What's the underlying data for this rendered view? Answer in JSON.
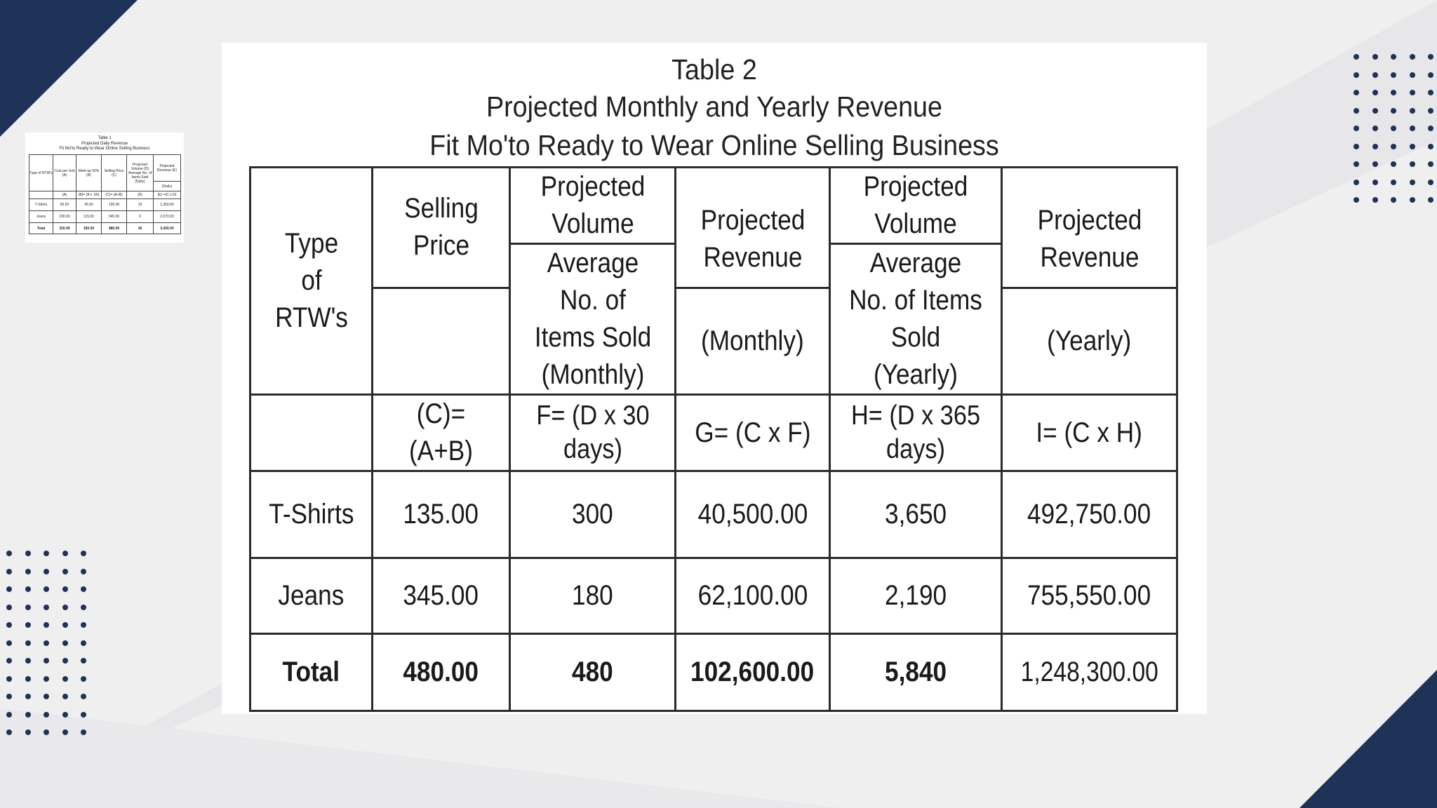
{
  "colors": {
    "background": "#efeff0",
    "navy_accent": "#1f3257",
    "card": "#ffffff",
    "table_border": "#2b2b2b"
  },
  "main_table": {
    "title": "Table 2",
    "subtitle": "Projected Monthly and Yearly Revenue",
    "business": "Fit Mo'to Ready to Wear Online Selling Business",
    "headers": {
      "type": "Type of RTW's",
      "selling_price": "Selling Price",
      "proj_volume_monthly": "Projected Volume",
      "avg_items_monthly": "Average No. of Items Sold (Monthly)",
      "proj_revenue_monthly": "Projected Revenue",
      "monthly": "(Monthly)",
      "proj_volume_yearly": "Projected Volume",
      "avg_items_yearly": "Average No. of Items Sold (Yearly)",
      "proj_revenue_yearly": "Projected Revenue",
      "yearly": "(Yearly)"
    },
    "formulas": {
      "c": "(C)= (A+B)",
      "f": "F= (D x 30 days)",
      "g": "G= (C x F)",
      "h": "H= (D x 365 days)",
      "i": "I= (C x H)"
    },
    "rows": [
      {
        "type": "T-Shirts",
        "price": "135.00",
        "monthly_items": "300",
        "monthly_revenue": "40,500.00",
        "yearly_items": "3,650",
        "yearly_revenue": "492,750.00"
      },
      {
        "type": "Jeans",
        "price": "345.00",
        "monthly_items": "180",
        "monthly_revenue": "62,100.00",
        "yearly_items": "2,190",
        "yearly_revenue": "755,550.00"
      }
    ],
    "total": {
      "type": "Total",
      "price": "480.00",
      "monthly_items": "480",
      "monthly_revenue": "102,600.00",
      "yearly_items": "5,840",
      "yearly_revenue": "1,248,300.00"
    }
  },
  "thumbnail_table": {
    "title": "Table 1",
    "subtitle": "Projected Daily Revenue",
    "business": "Fit Mo'to Ready to Wear Online Selling Business",
    "headers": {
      "type": "Type of RTW's",
      "cost": "Cost per Unit (A)",
      "markup": "Mark-up 50% (B)",
      "price": "Selling Price (C)",
      "volume": "Projected Volume (D) Average No. of Items Sold (Daily)",
      "revenue": "Projected Revenue (E)",
      "daily": "(Daily)"
    },
    "formulas": {
      "a": "(A)",
      "b": "(B)= (A x .50)",
      "c": "(C)= (A+B)",
      "d": "(D)",
      "e": "(E) =(C x D)"
    },
    "rows": [
      {
        "type": "T-Shirts",
        "cost": "90.00",
        "markup": "45.00",
        "price": "135.00",
        "volume": "10",
        "revenue": "1,350.00"
      },
      {
        "type": "Jeans",
        "cost": "230.00",
        "markup": "115.00",
        "price": "345.00",
        "volume": "6",
        "revenue": "2,070.00"
      }
    ],
    "total": {
      "type": "Total",
      "cost": "320.00",
      "markup": "160.00",
      "price": "480.00",
      "volume": "16",
      "revenue": "3,420.00"
    }
  }
}
